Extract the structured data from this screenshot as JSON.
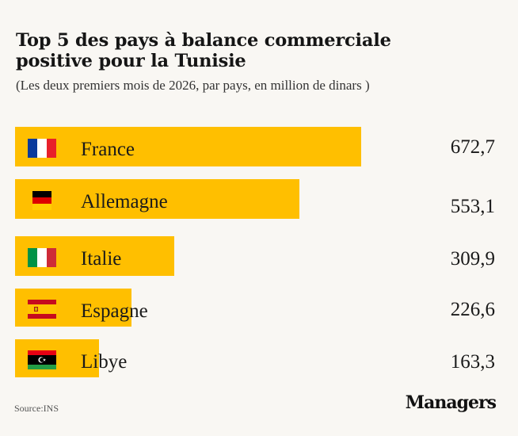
{
  "chart_data": {
    "type": "bar",
    "orientation": "horizontal",
    "title_line1": "Top 5 des pays à balance commerciale",
    "title_line2": "positive pour la Tunisie",
    "subtitle": "(Les deux premiers mois de 2026, par pays, en million de dinars )",
    "categories": [
      "France",
      "Allemagne",
      "Italie",
      "Espagne",
      "Libye"
    ],
    "values": [
      672.7,
      553.1,
      309.9,
      226.6,
      163.3
    ],
    "value_labels": [
      "672,7",
      "553,1",
      "309,9",
      "226,6",
      "163,3"
    ],
    "flags": [
      "france-flag-icon",
      "germany-flag-icon",
      "italy-flag-icon",
      "spain-flag-icon",
      "libya-flag-icon"
    ],
    "xlim": [
      0,
      750
    ],
    "bar_color": "#ffbf00"
  },
  "footer": {
    "source": "Source:INS",
    "brand": "Managers"
  }
}
